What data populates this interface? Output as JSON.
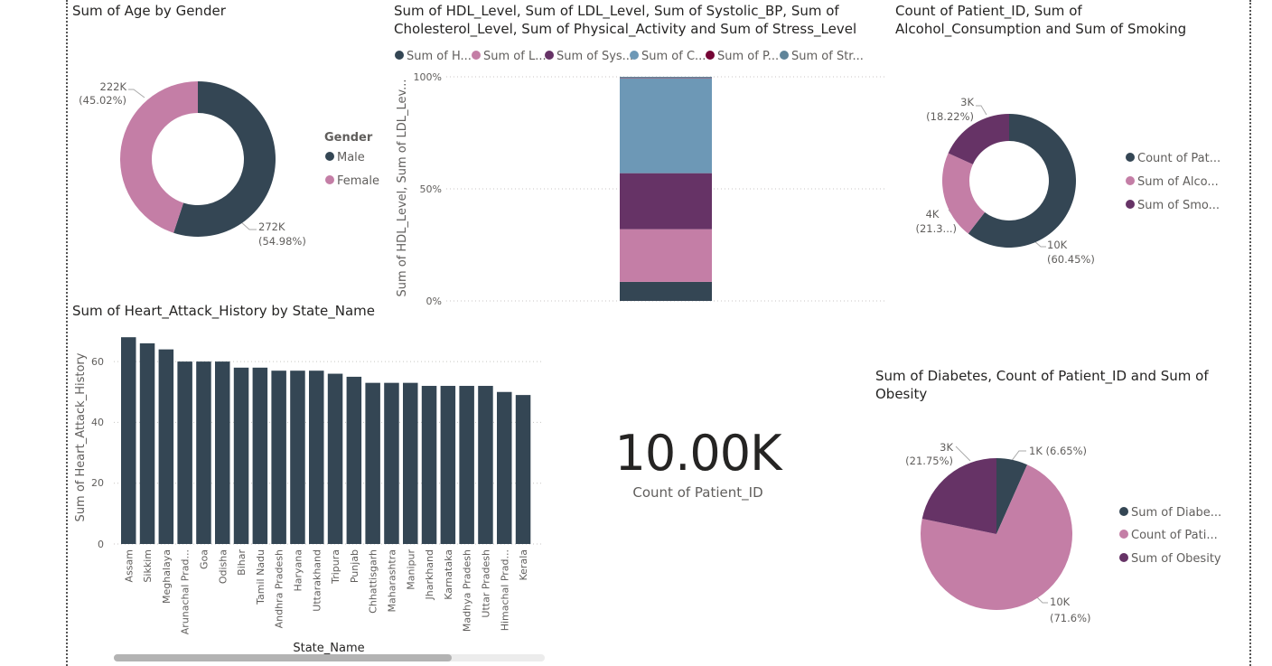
{
  "colors": {
    "dark": "#344654",
    "pink": "#c47ea6",
    "purple": "#663366",
    "blue": "#6d98b6",
    "maroon": "#750535",
    "steel": "#5f8499",
    "grid": "#c8c6c4",
    "text": "#605e5c"
  },
  "donut_age": {
    "title": "Sum of Age by Gender",
    "legend_title": "Gender",
    "legend": [
      "Male",
      "Female"
    ],
    "label_female_value": "222K",
    "label_female_pct": "(45.02%)",
    "label_male_value": "272K",
    "label_male_pct": "(54.98%)"
  },
  "stacked": {
    "title_line1": "Sum of HDL_Level, Sum of LDL_Level, Sum of Systolic_BP, Sum of",
    "title_line2": "Cholesterol_Level, Sum of Physical_Activity and Sum of Stress_Level",
    "legend": [
      "Sum of H...",
      "Sum of L...",
      "Sum of Sys...",
      "Sum of C...",
      "Sum of P...",
      "Sum of Str..."
    ],
    "ylabel": "Sum of HDL_Level, Sum of LDL_Lev...",
    "ticks": [
      "100%",
      "50%",
      "0%"
    ]
  },
  "donut_patient": {
    "title_line1": "Count of Patient_ID, Sum of",
    "title_line2": "Alcohol_Consumption and Sum of Smoking",
    "legend": [
      "Count of Pat...",
      "Sum of Alco...",
      "Sum of Smo..."
    ],
    "label_smoke_value": "3K",
    "label_smoke_pct": "(18.22%)",
    "label_alco_value": "4K",
    "label_alco_pct": "(21.3...)",
    "label_count_value": "10K",
    "label_count_pct": "(60.45%)"
  },
  "bar": {
    "title": "Sum of Heart_Attack_History by State_Name",
    "ylabel": "Sum of Heart_Attack_History",
    "xlabel": "State_Name",
    "ticks": [
      "0",
      "20",
      "40",
      "60"
    ]
  },
  "card": {
    "value": "10.00K",
    "label": "Count of Patient_ID"
  },
  "pie": {
    "title_line1": "Sum of Diabetes, Count of Patient_ID and Sum of",
    "title_line2": "Obesity",
    "legend": [
      "Sum of Diabe...",
      "Count of Pati...",
      "Sum of Obesity"
    ],
    "label_diab": "1K (6.65%)",
    "label_obes_value": "3K",
    "label_obes_pct": "(21.75%)",
    "label_count_value": "10K",
    "label_count_pct": "(71.6%)"
  },
  "chart_data": [
    {
      "type": "pie",
      "title": "Sum of Age by Gender",
      "donut": true,
      "categories": [
        "Male",
        "Female"
      ],
      "values": [
        272000,
        222000
      ],
      "percents": [
        54.98,
        45.02
      ],
      "legend": "right"
    },
    {
      "type": "bar",
      "stacked": "100%",
      "title": "Sum of HDL_Level, Sum of LDL_Level, Sum of Systolic_BP, Sum of Cholesterol_Level, Sum of Physical_Activity and Sum of Stress_Level",
      "ylim": [
        0,
        100
      ],
      "series": [
        {
          "name": "Sum of H...",
          "values": [
            8.5
          ]
        },
        {
          "name": "Sum of L...",
          "values": [
            23.5
          ]
        },
        {
          "name": "Sum of Sys...",
          "values": [
            25.0
          ]
        },
        {
          "name": "Sum of C...",
          "values": [
            42.3
          ]
        },
        {
          "name": "Sum of P...",
          "values": [
            0.2
          ]
        },
        {
          "name": "Sum of Str...",
          "values": [
            0.5
          ]
        }
      ],
      "legend": "top"
    },
    {
      "type": "pie",
      "donut": true,
      "title": "Count of Patient_ID, Sum of Alcohol_Consumption and Sum of Smoking",
      "categories": [
        "Count of Pat...",
        "Sum of Alco...",
        "Sum of Smo..."
      ],
      "values": [
        10000,
        3523,
        3014
      ],
      "percents": [
        60.45,
        21.33,
        18.22
      ],
      "legend": "right"
    },
    {
      "type": "bar",
      "title": "Sum of Heart_Attack_History by State_Name",
      "xlabel": "State_Name",
      "ylabel": "Sum of Heart_Attack_History",
      "ylim": [
        0,
        70
      ],
      "categories": [
        "Assam",
        "Sikkim",
        "Meghalaya",
        "Arunachal Prad...",
        "Goa",
        "Odisha",
        "Bihar",
        "Tamil Nadu",
        "Andhra Pradesh",
        "Haryana",
        "Uttarakhand",
        "Tripura",
        "Punjab",
        "Chhattisgarh",
        "Maharashtra",
        "Manipur",
        "Jharkhand",
        "Karnataka",
        "Madhya Pradesh",
        "Uttar Pradesh",
        "Himachal Prad...",
        "Kerala"
      ],
      "values": [
        68,
        66,
        64,
        60,
        60,
        60,
        58,
        58,
        57,
        57,
        57,
        56,
        55,
        53,
        53,
        53,
        52,
        52,
        52,
        52,
        50,
        49
      ],
      "grid": true
    },
    {
      "type": "pie",
      "title": "Sum of Diabetes, Count of Patient_ID and Sum of Obesity",
      "categories": [
        "Sum of Diabe...",
        "Count of Pati...",
        "Sum of Obesity"
      ],
      "values": [
        929,
        10000,
        3038
      ],
      "percents": [
        6.65,
        71.6,
        21.75
      ],
      "legend": "right"
    }
  ]
}
